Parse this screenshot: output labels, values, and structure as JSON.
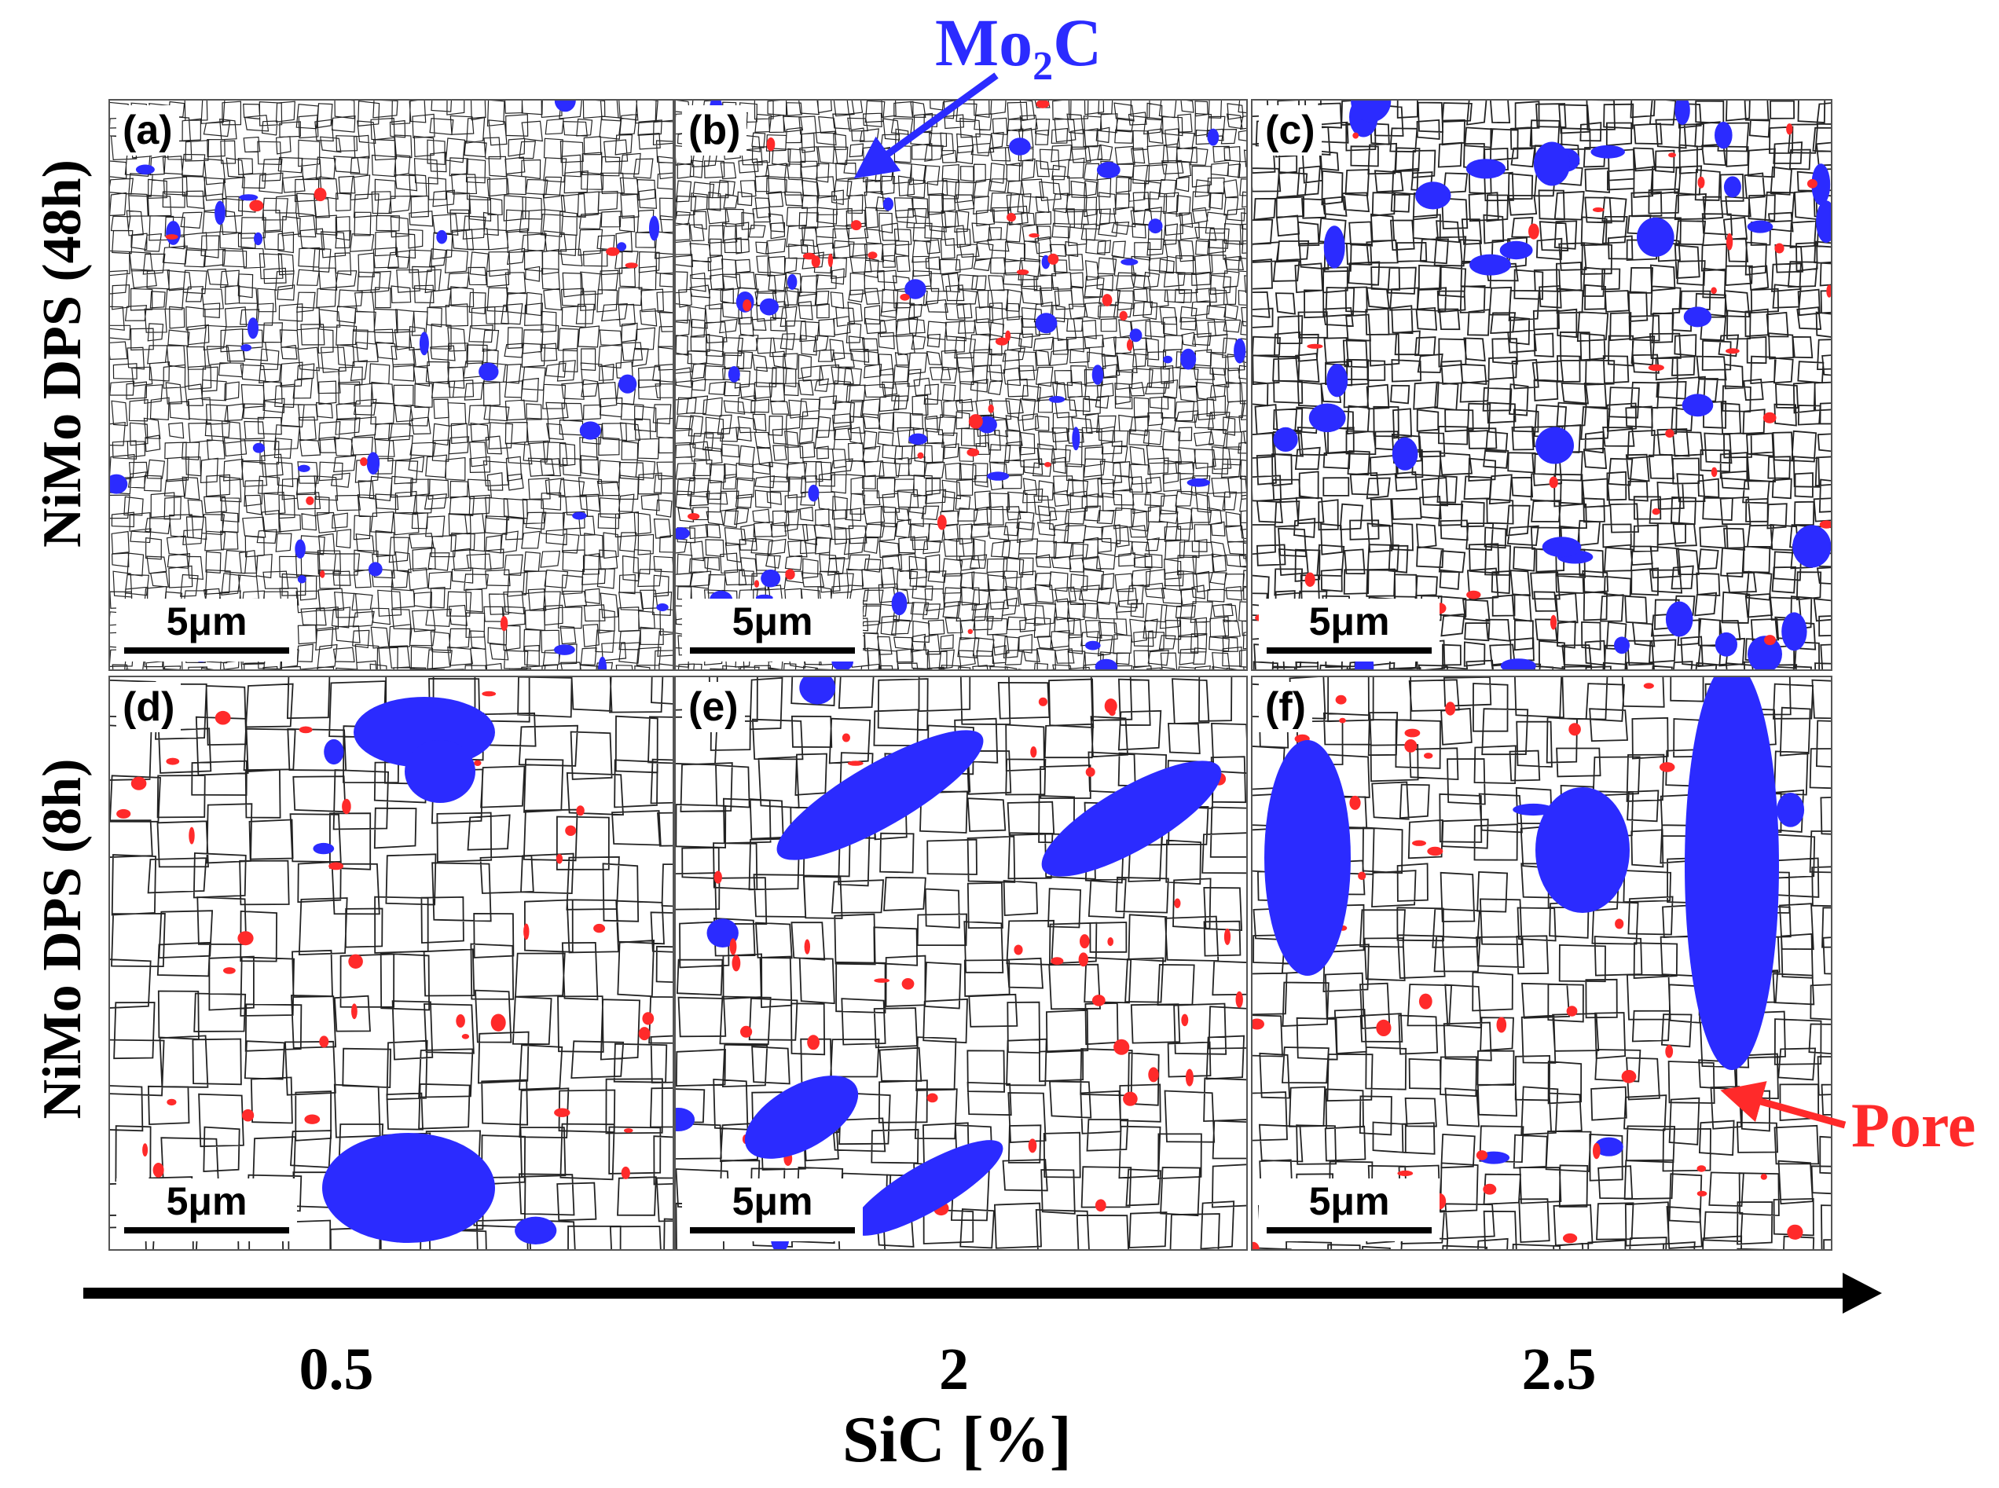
{
  "panels": [
    {
      "label": "(a)",
      "scale": "5μm"
    },
    {
      "label": "(b)",
      "scale": "5μm"
    },
    {
      "label": "(c)",
      "scale": "5μm"
    },
    {
      "label": "(d)",
      "scale": "5μm"
    },
    {
      "label": "(e)",
      "scale": "5μm"
    },
    {
      "label": "(f)",
      "scale": "5μm"
    }
  ],
  "rows": {
    "top": "NiMo DPS (48h)",
    "bottom": "NiMo DPS (8h)"
  },
  "annotations": {
    "mo2c_main": "Mo",
    "mo2c_sub": "2",
    "mo2c_tail": "C",
    "pore": "Pore"
  },
  "axis": {
    "ticks": [
      "0.5",
      "2",
      "2.5"
    ],
    "label": "SiC [%]"
  },
  "colors": {
    "mo2c": "#2b2bff",
    "pore": "#ff2a2a",
    "axis": "#000000"
  }
}
